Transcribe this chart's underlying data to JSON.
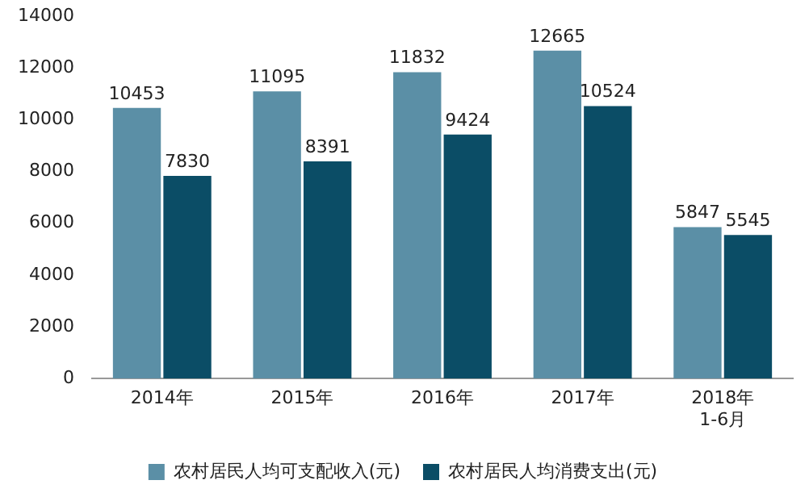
{
  "chart_data": {
    "type": "bar",
    "categories": [
      "2014年",
      "2015年",
      "2016年",
      "2017年",
      "2018年\n1-6月"
    ],
    "series": [
      {
        "name": "农村居民人均可支配收入(元)",
        "color": "#5b8fa6",
        "values": [
          10453,
          11095,
          11832,
          12665,
          5847
        ]
      },
      {
        "name": "农村居民人均消费支出(元)",
        "color": "#0b4d66",
        "values": [
          7830,
          8391,
          9424,
          10524,
          5545
        ]
      }
    ],
    "ylim": [
      0,
      14000
    ],
    "yticks": [
      0,
      2000,
      4000,
      6000,
      8000,
      10000,
      12000,
      14000
    ],
    "grid": false,
    "legend": "bottom",
    "data_labels": true
  }
}
